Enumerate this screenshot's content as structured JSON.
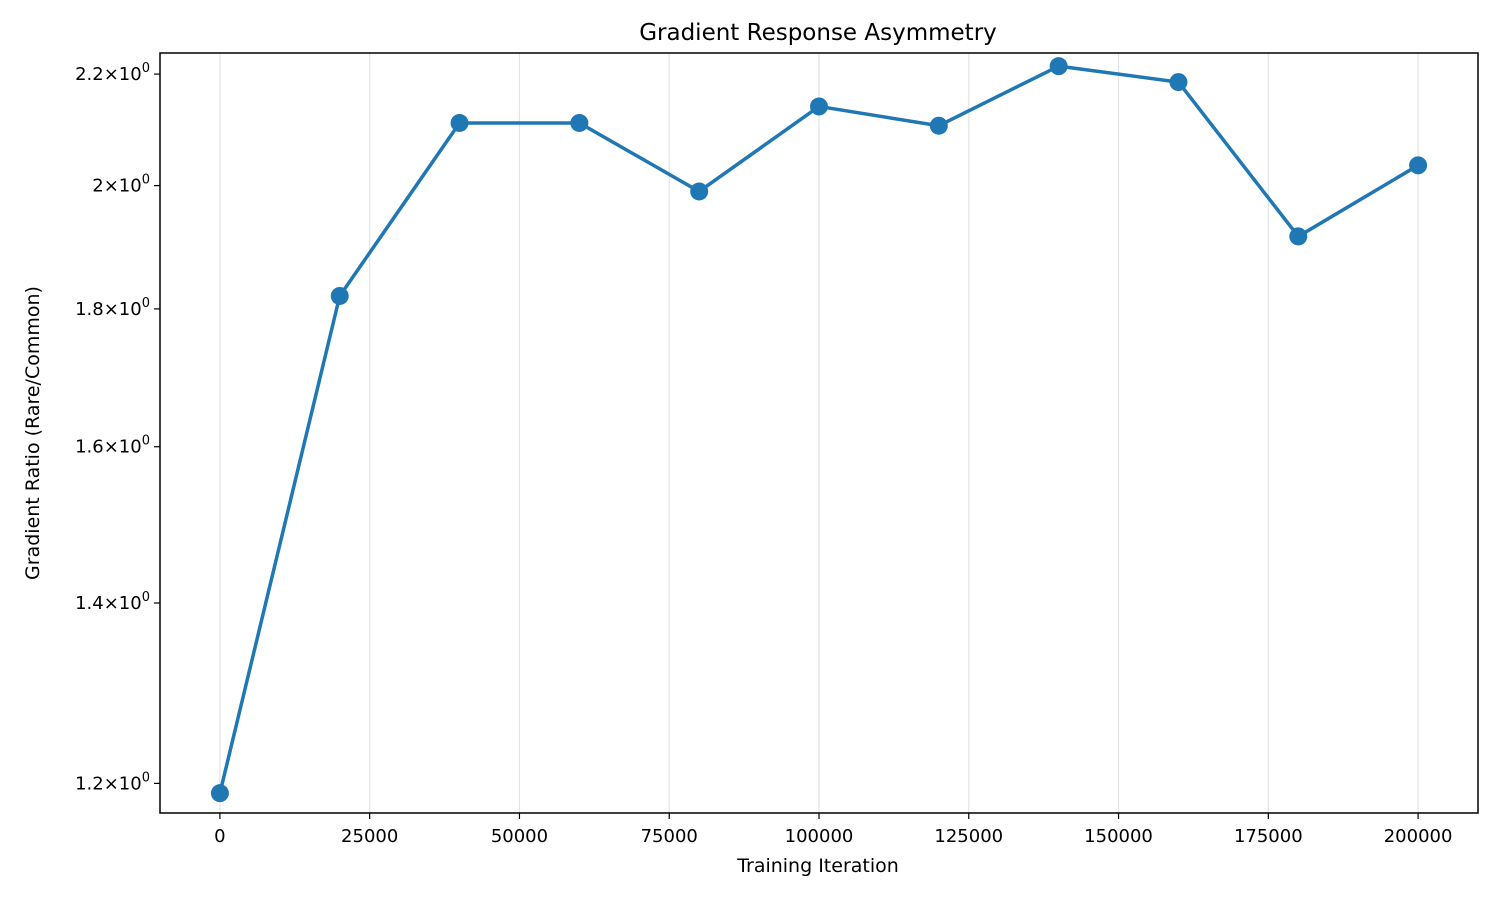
{
  "chart_data": {
    "type": "line",
    "title": "Gradient Response Asymmetry",
    "xlabel": "Training Iteration",
    "ylabel": "Gradient Ratio (Rare/Common)",
    "yscale": "log",
    "grid": "x-axis only",
    "legend": "none",
    "xlim": [
      -10000,
      210000
    ],
    "ylim": [
      1.17,
      2.24
    ],
    "x_ticks": [
      0,
      25000,
      50000,
      75000,
      100000,
      125000,
      150000,
      175000,
      200000
    ],
    "x_tick_labels": [
      "0",
      "25000",
      "50000",
      "75000",
      "100000",
      "125000",
      "150000",
      "175000",
      "200000"
    ],
    "y_ticks": [
      1.2,
      1.4,
      1.6,
      1.8,
      2.0,
      2.2
    ],
    "y_tick_mantissas": [
      "1.2",
      "1.4",
      "1.6",
      "1.8",
      "2",
      "2.2"
    ],
    "y_tick_exponent": "0",
    "series": [
      {
        "color": "#1f77b4",
        "x": [
          0,
          20000,
          40000,
          60000,
          80000,
          100000,
          120000,
          140000,
          160000,
          180000,
          200000
        ],
        "y": [
          1.19,
          1.82,
          2.11,
          2.11,
          1.99,
          2.14,
          2.105,
          2.215,
          2.185,
          1.915,
          2.035
        ]
      }
    ]
  }
}
